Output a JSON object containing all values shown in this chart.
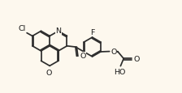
{
  "bg_color": "#fdf8ee",
  "bond_color": "#2d2d2d",
  "lw": 1.25,
  "fs": 6.8,
  "dbl_off": 0.058,
  "bl": 0.58,
  "figsize": [
    2.24,
    1.16
  ],
  "dpi": 100,
  "xlim": [
    0,
    10.5
  ],
  "ylim": [
    0.2,
    5.2
  ]
}
